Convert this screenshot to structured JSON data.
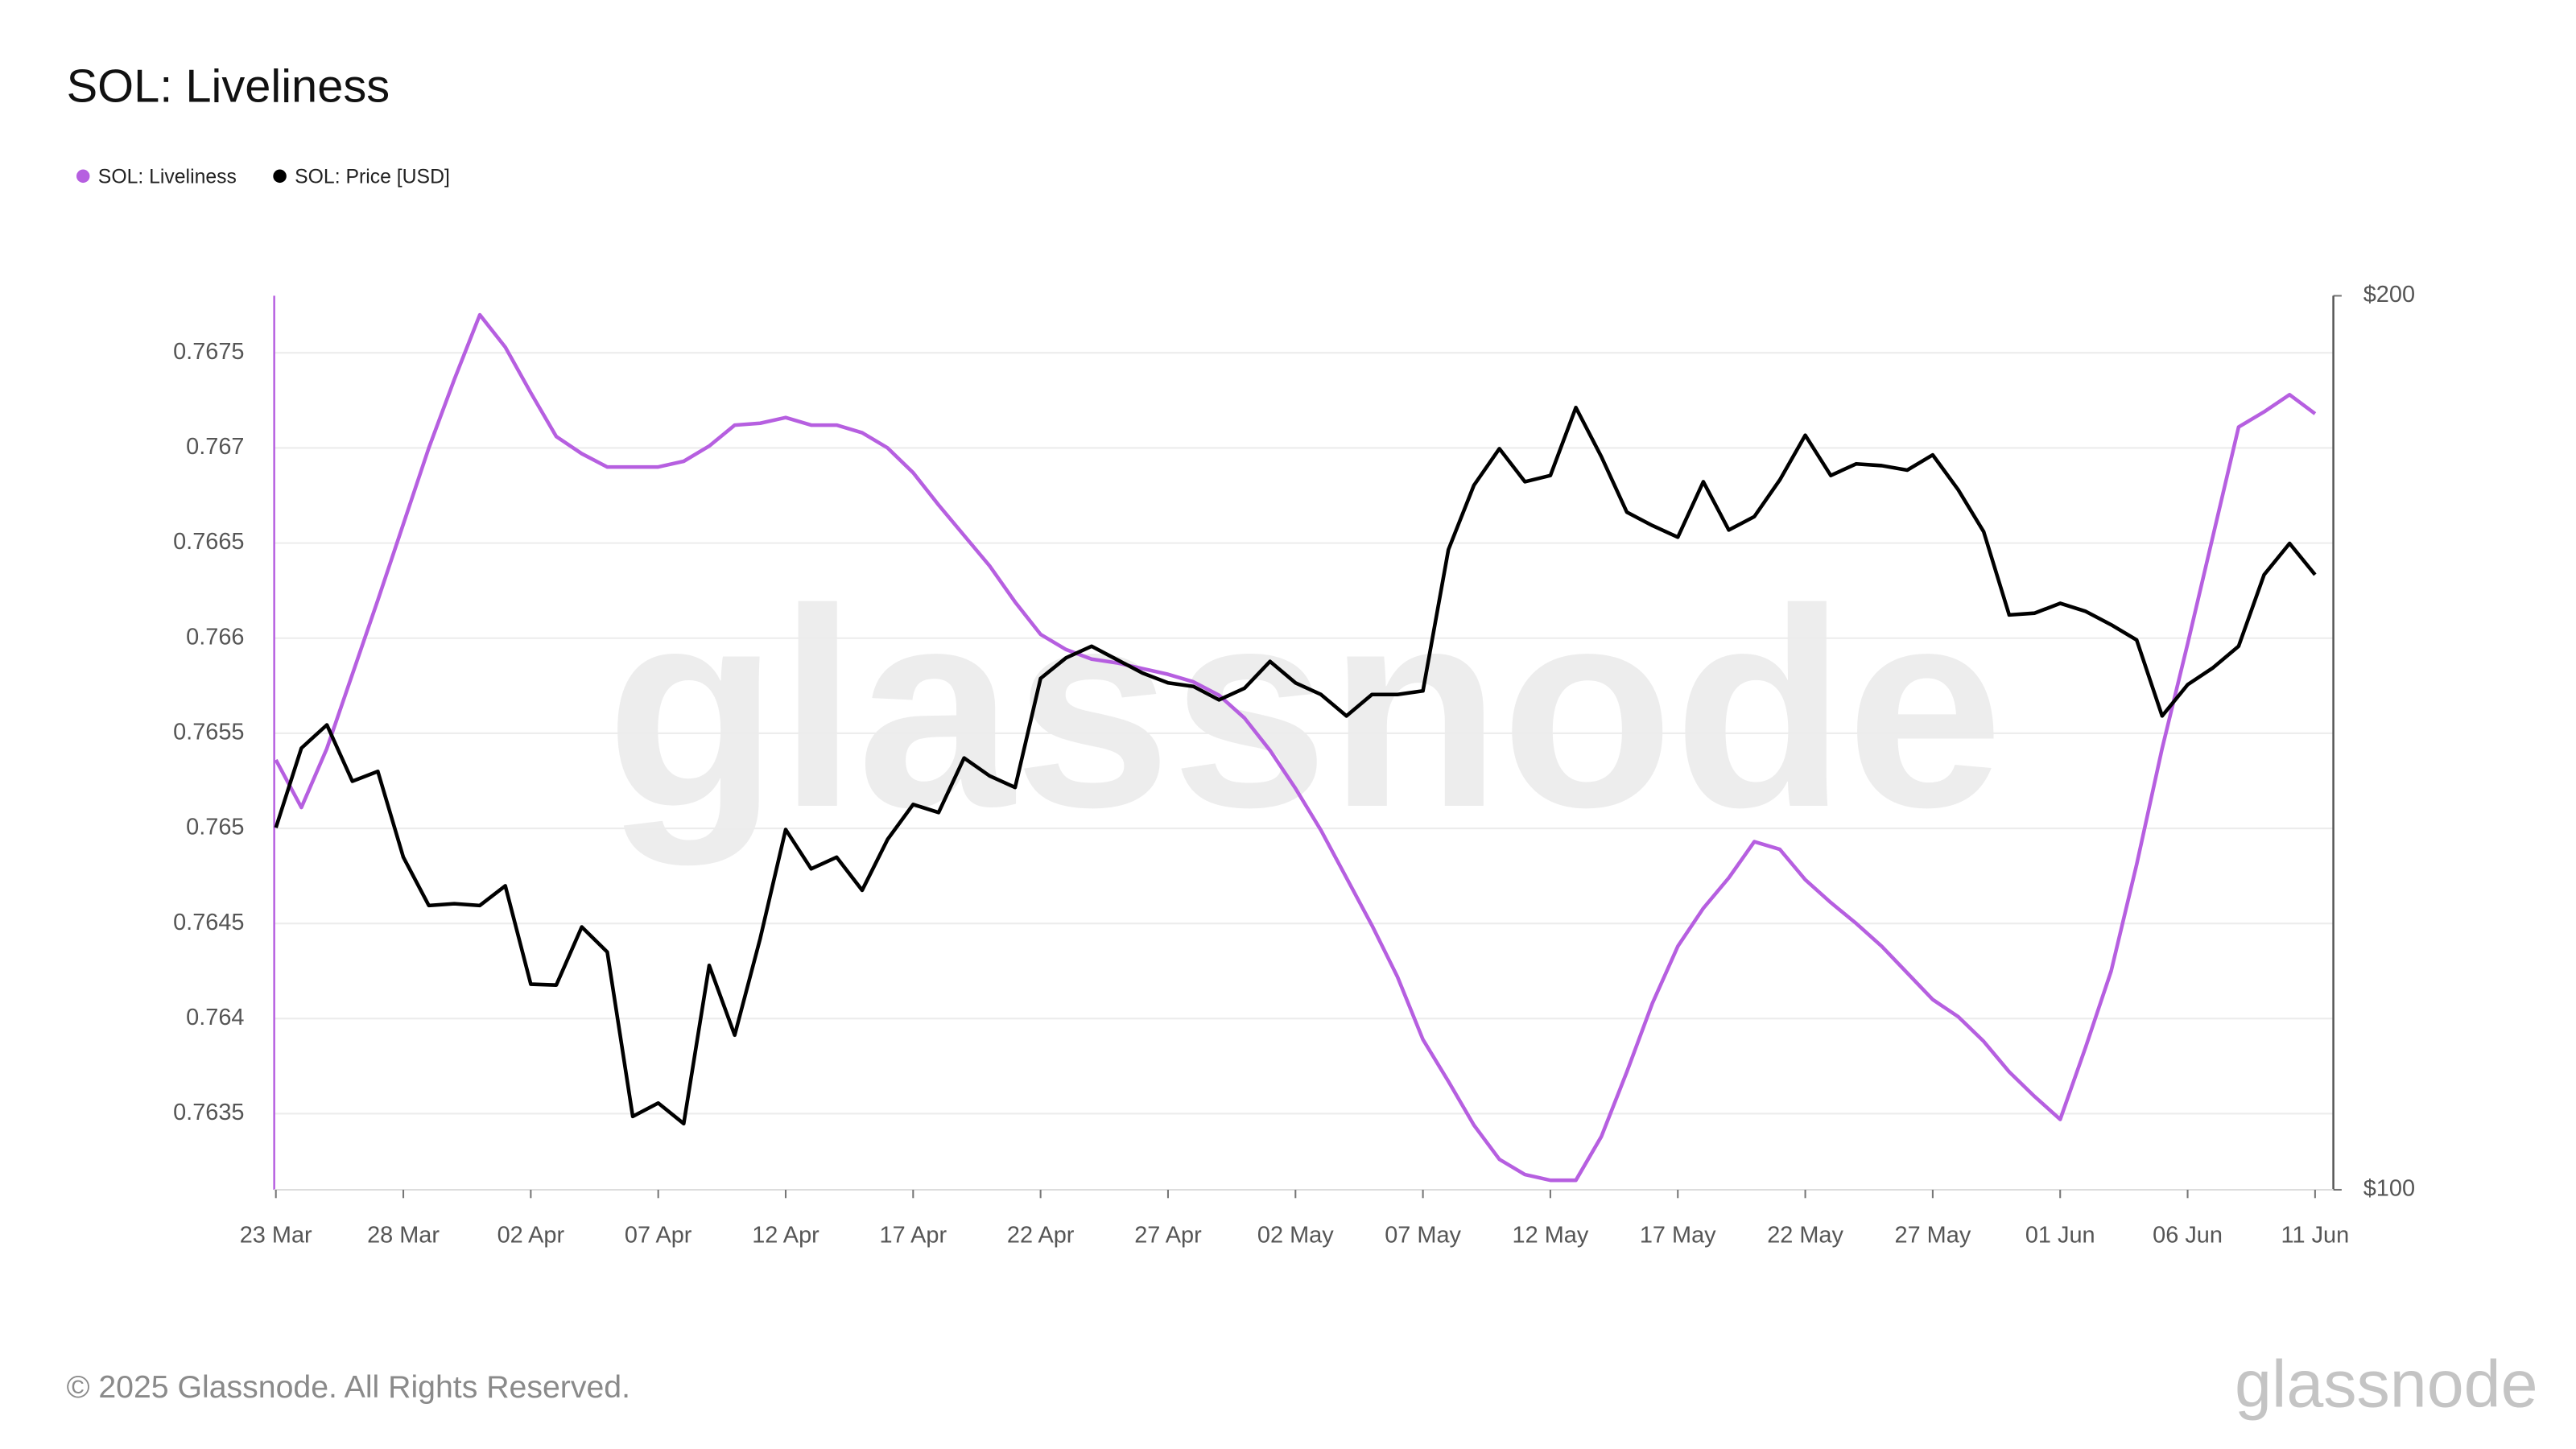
{
  "chart_data": {
    "type": "line",
    "title": "SOL: Liveliness",
    "watermark": "glassnode",
    "footer": "© 2025 Glassnode. All Rights Reserved.",
    "logo": "glassnode",
    "categories": [
      "23 Mar",
      null,
      null,
      null,
      null,
      "28 Mar",
      null,
      null,
      null,
      null,
      "02 Apr",
      null,
      null,
      null,
      null,
      "07 Apr",
      null,
      null,
      null,
      null,
      "12 Apr",
      null,
      null,
      null,
      null,
      "17 Apr",
      null,
      null,
      null,
      null,
      "22 Apr",
      null,
      null,
      null,
      null,
      "27 Apr",
      null,
      null,
      null,
      null,
      "02 May",
      null,
      null,
      null,
      null,
      "07 May",
      null,
      null,
      null,
      null,
      "12 May",
      null,
      null,
      null,
      null,
      "17 May",
      null,
      null,
      null,
      null,
      "22 May",
      null,
      null,
      null,
      null,
      "27 May",
      null,
      null,
      null,
      null,
      "01 Jun",
      null,
      null,
      null,
      null,
      "06 Jun",
      null,
      null,
      null,
      null,
      "11 Jun"
    ],
    "series": [
      {
        "name": "SOL: Liveliness",
        "color": "#b65fe0",
        "values": [
          0.76536,
          0.76511,
          0.76542,
          0.76581,
          0.7662,
          0.7666,
          0.767,
          0.76736,
          0.7677,
          0.76753,
          0.76729,
          0.76706,
          0.76697,
          0.7669,
          0.7669,
          0.7669,
          0.76693,
          0.76701,
          0.76712,
          0.76713,
          0.76716,
          0.76712,
          0.76712,
          0.76708,
          0.767,
          0.76687,
          0.7667,
          0.76654,
          0.76638,
          0.76619,
          0.76602,
          0.76594,
          0.76589,
          0.76587,
          0.76584,
          0.76581,
          0.76577,
          0.7657,
          0.76558,
          0.76541,
          0.76521,
          0.76499,
          0.76474,
          0.76449,
          0.76422,
          0.76389,
          0.76367,
          0.76344,
          0.76326,
          0.76318,
          0.76315,
          0.76315,
          0.76338,
          0.76372,
          0.76408,
          0.76438,
          0.76458,
          0.76474,
          0.76493,
          0.76489,
          0.76473,
          0.76461,
          0.7645,
          0.76438,
          0.76424,
          0.7641,
          0.76401,
          0.76388,
          0.76372,
          0.76359,
          0.76347,
          0.76385,
          0.76425,
          0.76481,
          0.76542,
          0.76597,
          0.76654,
          0.76711,
          0.76719,
          0.76728,
          0.76718
        ]
      },
      {
        "name": "SOL: Price [USD]",
        "color": "#000000",
        "axis": "y2",
        "values": [
          140.5,
          149.4,
          152.0,
          145.7,
          146.8,
          137.2,
          131.8,
          132.0,
          131.8,
          134.0,
          123.0,
          122.9,
          129.4,
          126.6,
          108.2,
          109.7,
          107.4,
          125.1,
          117.3,
          128.1,
          140.3,
          135.9,
          137.2,
          133.5,
          139.2,
          143.1,
          142.2,
          148.3,
          146.3,
          145.0,
          157.2,
          159.5,
          160.8,
          159.3,
          157.8,
          156.7,
          156.3,
          154.8,
          156.1,
          159.1,
          156.7,
          155.4,
          153.0,
          155.4,
          155.4,
          155.8,
          171.6,
          178.8,
          182.9,
          179.2,
          179.9,
          187.5,
          182.0,
          175.8,
          174.3,
          173.0,
          179.2,
          173.8,
          175.3,
          179.4,
          184.4,
          179.9,
          181.2,
          181.0,
          180.5,
          182.2,
          178.3,
          173.6,
          164.3,
          164.5,
          165.6,
          164.7,
          163.2,
          161.5,
          153.0,
          156.5,
          158.4,
          160.8,
          168.8,
          172.3,
          168.8
        ]
      }
    ],
    "ylim": [
      0.7631,
      0.7678
    ],
    "yticks": [
      0.7635,
      0.764,
      0.7645,
      0.765,
      0.7655,
      0.766,
      0.7665,
      0.767,
      0.7675
    ],
    "y2lim": [
      100,
      200
    ],
    "y2ticks": [
      {
        "value": 100,
        "label": "$100"
      },
      {
        "value": 200,
        "label": "$200"
      }
    ],
    "grid": true,
    "legend": "top-left"
  }
}
